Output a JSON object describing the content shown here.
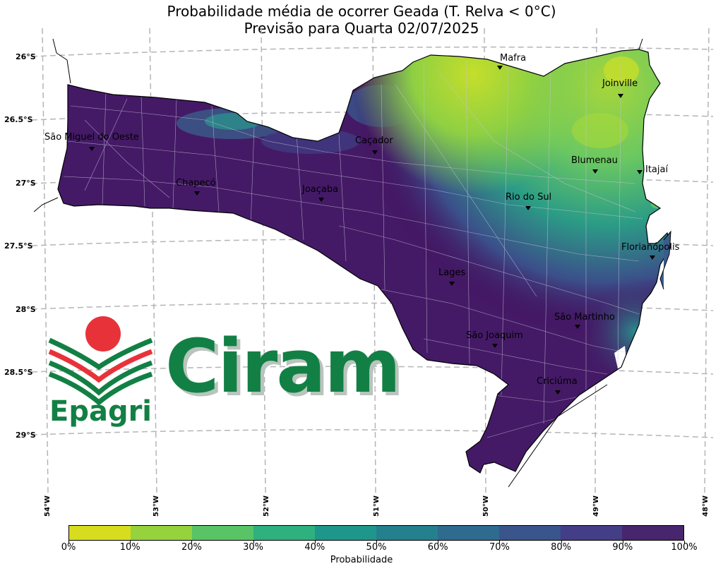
{
  "title_line1": "Probabilidade média de ocorrer Geada (T. Relva < 0°C)",
  "title_line2": "Previsão para Quarta 02/07/2025",
  "lat_labels": [
    "26°S",
    "26.5°S",
    "27°S",
    "27.5°S",
    "28°S",
    "28.5°S",
    "29°S"
  ],
  "lon_labels": [
    "54°W",
    "53°W",
    "52°W",
    "51°W",
    "50°W",
    "49°W",
    "48°W"
  ],
  "cities": [
    "Mafra",
    "Joinville",
    "São Miguel do Oeste",
    "Caçador",
    "Blumenau",
    "Itajaí",
    "Chapecó",
    "Joaçaba",
    "Rio do Sul",
    "Florianópolis",
    "Lages",
    "São Martinho",
    "São Joaquim",
    "Criciúma"
  ],
  "colorbar": {
    "label": "Probabilidade",
    "ticks": [
      "0%",
      "10%",
      "20%",
      "30%",
      "40%",
      "50%",
      "60%",
      "70%",
      "80%",
      "90%",
      "100%"
    ],
    "colors": [
      "#d7dd1e",
      "#95d23c",
      "#58c466",
      "#2fb07f",
      "#1f968b",
      "#25808e",
      "#2e6b8e",
      "#39558c",
      "#433e85",
      "#47266e",
      "#440154"
    ]
  },
  "logo": {
    "ciram": "Ciram",
    "epagri": "Epagri"
  }
}
